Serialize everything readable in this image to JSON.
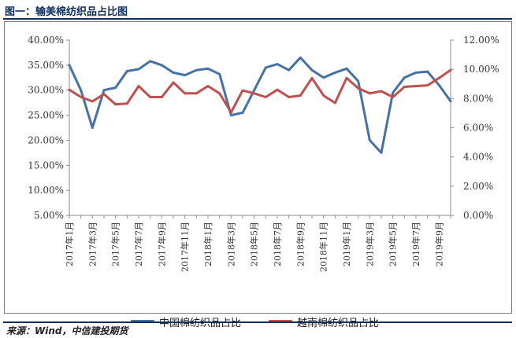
{
  "header": {
    "title": "图一：输美棉纺织品占比图"
  },
  "source": "来源：Wind，中信建投期货",
  "chart_data": {
    "type": "line",
    "x": [
      "2017年1月",
      "2017年2月",
      "2017年3月",
      "2017年4月",
      "2017年5月",
      "2017年6月",
      "2017年7月",
      "2017年8月",
      "2017年9月",
      "2017年10月",
      "2017年11月",
      "2017年12月",
      "2018年1月",
      "2018年2月",
      "2018年3月",
      "2018年4月",
      "2018年5月",
      "2018年6月",
      "2018年7月",
      "2018年8月",
      "2018年9月",
      "2018年10月",
      "2018年11月",
      "2018年12月",
      "2019年1月",
      "2019年2月",
      "2019年3月",
      "2019年4月",
      "2019年5月",
      "2019年6月",
      "2019年7月",
      "2019年8月",
      "2019年9月",
      "2019年10月"
    ],
    "x_tick_labels": [
      "2017年1月",
      "2017年3月",
      "2017年5月",
      "2017年7月",
      "2017年9月",
      "2017年11月",
      "2018年1月",
      "2018年3月",
      "2018年5月",
      "2018年7月",
      "2018年9月",
      "2018年11月",
      "2019年1月",
      "2019年3月",
      "2019年5月",
      "2019年7月",
      "2019年9月"
    ],
    "series": [
      {
        "name": "中国棉纺织品占比",
        "axis": "left",
        "color": "#4472a8",
        "values": [
          35.0,
          30.0,
          22.5,
          30.0,
          30.5,
          33.8,
          34.2,
          35.8,
          35.0,
          33.5,
          33.0,
          34.0,
          34.3,
          33.2,
          25.0,
          25.5,
          30.0,
          34.5,
          35.2,
          34.0,
          36.5,
          34.0,
          32.5,
          33.5,
          34.3,
          31.8,
          20.0,
          17.5,
          29.5,
          32.5,
          33.5,
          33.7,
          31.0,
          27.8
        ]
      },
      {
        "name": "越南棉纺织品占比",
        "axis": "right",
        "color": "#c0504d",
        "values": [
          8.6,
          8.1,
          7.8,
          8.3,
          7.6,
          7.65,
          8.85,
          8.1,
          8.1,
          9.1,
          8.35,
          8.35,
          8.85,
          8.35,
          7.05,
          8.55,
          8.35,
          8.1,
          8.6,
          8.1,
          8.2,
          9.4,
          8.2,
          7.7,
          9.4,
          8.7,
          8.35,
          8.5,
          8.1,
          8.8,
          8.85,
          8.9,
          9.4,
          9.95
        ]
      }
    ],
    "yleft": {
      "min": 5,
      "max": 40,
      "ticks": [
        "5.00%",
        "10.00%",
        "15.00%",
        "20.00%",
        "25.00%",
        "30.00%",
        "35.00%",
        "40.00%"
      ]
    },
    "yright": {
      "min": 0,
      "max": 12,
      "ticks": [
        "0.00%",
        "2.00%",
        "4.00%",
        "6.00%",
        "8.00%",
        "10.00%",
        "12.00%"
      ]
    },
    "grid": false,
    "legend_position": "bottom"
  }
}
